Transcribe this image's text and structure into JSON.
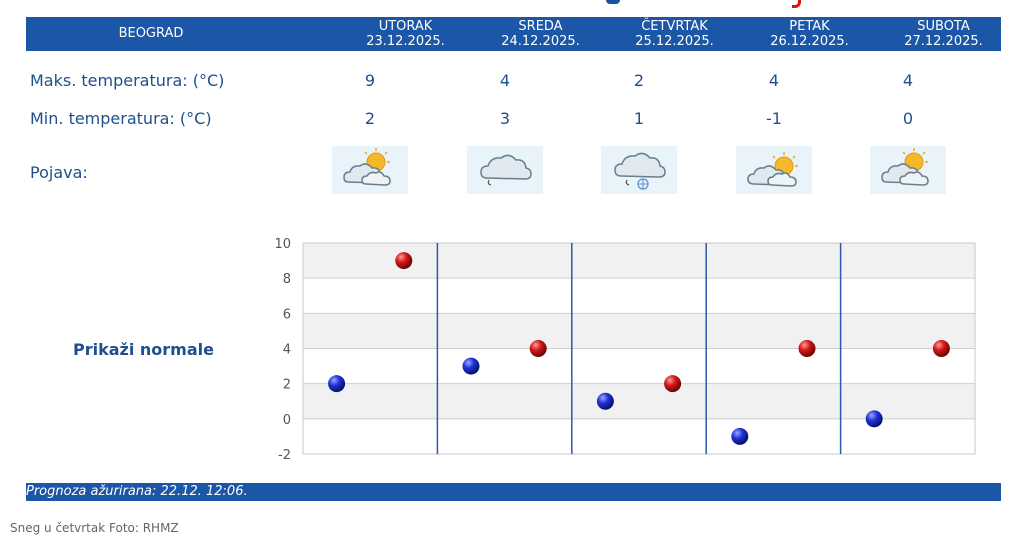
{
  "header": {
    "city": "BEOGRAD",
    "days": [
      {
        "name": "UTORAK",
        "date": "23.12.2025."
      },
      {
        "name": "SREDA",
        "date": "24.12.2025."
      },
      {
        "name": "ČETVRTAK",
        "date": "25.12.2025."
      },
      {
        "name": "PETAK",
        "date": "26.12.2025."
      },
      {
        "name": "SUBOTA",
        "date": "27.12.2025."
      }
    ]
  },
  "rows": {
    "max_label": "Maks. temperatura: (°C)",
    "min_label": "Min. temperatura: (°C)",
    "weather_label": "Pojava:",
    "max_values": [
      "9",
      "4",
      "2",
      "4",
      "4"
    ],
    "min_values": [
      "2",
      "3",
      "1",
      "-1",
      "0"
    ],
    "weather_icons": [
      "partly-cloudy-sun-icon",
      "cloud-rain-icon",
      "cloud-rain-snow-icon",
      "partly-cloudy-sun-icon",
      "partly-cloudy-sun-icon"
    ]
  },
  "show_normals": "Prikaži normale",
  "chart_data": {
    "type": "scatter",
    "ylim": [
      -2,
      10
    ],
    "yticks": [
      "10",
      "8",
      "6",
      "4",
      "2",
      "0",
      "-2"
    ],
    "categories": [
      "UTORAK",
      "SREDA",
      "ČETVRTAK",
      "PETAK",
      "SUBOTA"
    ],
    "series": [
      {
        "values": [
          2,
          3,
          1,
          -1,
          0
        ],
        "color": "#1a2fd0"
      },
      {
        "values": [
          9,
          4,
          2,
          4,
          4
        ],
        "color": "#d01a1a"
      }
    ],
    "grid": true
  },
  "footer": {
    "text": "Prognoza ažurirana:  22.12. 12:06."
  },
  "caption": "Sneg u četvrtak Foto: RHMZ"
}
